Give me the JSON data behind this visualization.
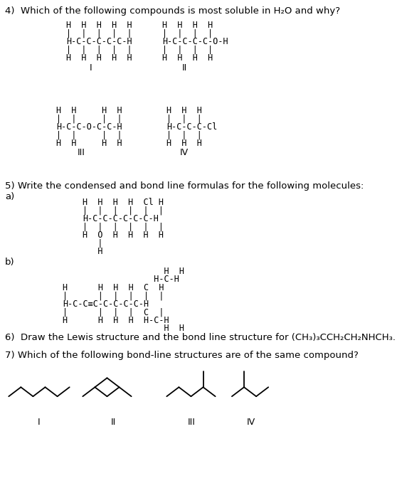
{
  "bg_color": "#ffffff",
  "figsize": [
    5.58,
    7.0
  ],
  "dpi": 100,
  "q4_title": "4)  Which of the following compounds is most soluble in H₂O and why?",
  "q5_title": "5) Write the condensed and bond line formulas for the following molecules:",
  "q5a_label": "a)",
  "q5b_label": "b)",
  "q6_title": "6)  Draw the Lewis structure and the bond line structure for (CH₃)₃CCH₂CH₂NHCH₃.",
  "q7_title": "7) Which of the following bond-line structures are of the same compound?"
}
